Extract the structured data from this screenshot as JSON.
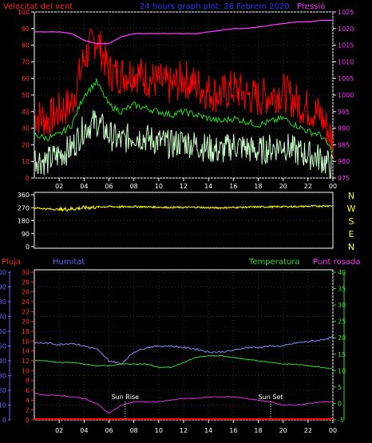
{
  "colors": {
    "background": "#000000",
    "wind_max": "#ff0000",
    "wind_avg": "#22dd22",
    "wind_min": "#ccffcc",
    "pressure": "#ff33ff",
    "direction": "#ffff00",
    "humidity": "#8888ff",
    "temperature": "#33dd33",
    "dewpoint": "#dd33dd",
    "rain": "#ff0000",
    "left_axis_red": "#ff3333",
    "left_axis_blue": "#6666ff",
    "right_axis_magenta": "#ff33ff",
    "right_axis_green": "#33dd33",
    "compass": "#ffff00",
    "panel_border": "#ffffff"
  },
  "header": {
    "wind_title": "Velocitat del vent",
    "graph_title": "24 hours graph plot:  26 Febrero 2020",
    "pressure_title": "Pressió"
  },
  "legend": {
    "rain": "Pluja",
    "humidity": "Humitat",
    "temperature": "Temperatura",
    "dewpoint": "Punt rosada"
  },
  "compass": [
    "N",
    "W",
    "S",
    "E",
    "N"
  ],
  "annotations": {
    "sunrise": "Sun Rise",
    "sunset": "Sun Set"
  },
  "chart_data": [
    {
      "type": "line",
      "title": "Velocitat del vent",
      "xlabel": "",
      "x_ticks": [
        "02",
        "04",
        "06",
        "08",
        "10",
        "12",
        "14",
        "16",
        "18",
        "20",
        "22",
        "00"
      ],
      "ylim_left": [
        0,
        100
      ],
      "y_ticks_left": [
        0,
        10,
        20,
        30,
        40,
        50,
        60,
        70,
        80,
        90,
        100
      ],
      "ylim_right": [
        975,
        1025
      ],
      "y_ticks_right": [
        975,
        980,
        985,
        990,
        995,
        1000,
        1005,
        1010,
        1015,
        1020,
        1025
      ],
      "right_axis_label": "Pressió",
      "x_hours": [
        0,
        1,
        2,
        3,
        4,
        5,
        6,
        7,
        8,
        9,
        10,
        11,
        12,
        13,
        14,
        15,
        16,
        17,
        18,
        19,
        20,
        21,
        22,
        23,
        24
      ],
      "series": [
        {
          "role": "wind_max",
          "axis": "left",
          "values": [
            38,
            35,
            40,
            45,
            72,
            85,
            64,
            62,
            64,
            60,
            58,
            55,
            60,
            56,
            52,
            50,
            54,
            50,
            48,
            50,
            52,
            46,
            42,
            38,
            22
          ]
        },
        {
          "role": "wind_avg",
          "axis": "left",
          "values": [
            26,
            24,
            26,
            32,
            50,
            58,
            44,
            40,
            44,
            42,
            40,
            38,
            40,
            38,
            36,
            34,
            36,
            34,
            32,
            34,
            36,
            32,
            28,
            26,
            16
          ]
        },
        {
          "role": "wind_min",
          "axis": "left",
          "values": [
            12,
            10,
            14,
            18,
            30,
            34,
            26,
            22,
            26,
            24,
            22,
            20,
            22,
            20,
            18,
            16,
            20,
            18,
            16,
            18,
            20,
            16,
            14,
            12,
            6
          ]
        },
        {
          "role": "pressure",
          "axis": "right",
          "values": [
            1019,
            1019,
            1019,
            1018.5,
            1016.5,
            1015.5,
            1015.5,
            1017.5,
            1018.5,
            1018.5,
            1018.5,
            1018.5,
            1018.5,
            1018.5,
            1019,
            1019.5,
            1020,
            1020,
            1020.5,
            1021,
            1021.5,
            1022,
            1022,
            1022.5,
            1022.5
          ]
        }
      ]
    },
    {
      "type": "line",
      "title": "",
      "x_ticks": [
        "02",
        "04",
        "06",
        "08",
        "10",
        "12",
        "14",
        "16",
        "18",
        "20",
        "22",
        "00"
      ],
      "ylim": [
        0,
        360
      ],
      "y_ticks": [
        0,
        90,
        180,
        270,
        360
      ],
      "x_hours": [
        0,
        1,
        2,
        3,
        4,
        5,
        6,
        7,
        8,
        9,
        10,
        11,
        12,
        13,
        14,
        15,
        16,
        17,
        18,
        19,
        20,
        21,
        22,
        23,
        24
      ],
      "series": [
        {
          "role": "wind_direction",
          "values": [
            270,
            262,
            258,
            262,
            270,
            275,
            278,
            276,
            278,
            276,
            274,
            272,
            272,
            274,
            270,
            270,
            272,
            274,
            276,
            276,
            278,
            278,
            280,
            282,
            284
          ]
        }
      ]
    },
    {
      "type": "line",
      "title": "",
      "x_ticks": [
        "02",
        "04",
        "06",
        "08",
        "10",
        "12",
        "14",
        "16",
        "18",
        "20",
        "22",
        "00"
      ],
      "ylim_humidity": [
        0,
        100
      ],
      "y_ticks_humidity": [
        0,
        10,
        20,
        30,
        40,
        50,
        60,
        70,
        80,
        90,
        100
      ],
      "ylim_rain": [
        0,
        30
      ],
      "y_ticks_rain": [
        0,
        2,
        4,
        6,
        8,
        10,
        12,
        14,
        16,
        18,
        20,
        22,
        24,
        26,
        28,
        30
      ],
      "ylim_right": [
        -5,
        40
      ],
      "y_ticks_right": [
        -5,
        0,
        5,
        10,
        15,
        20,
        25,
        30,
        35,
        40
      ],
      "x_hours": [
        0,
        1,
        2,
        3,
        4,
        5,
        6,
        7,
        8,
        9,
        10,
        11,
        12,
        13,
        14,
        15,
        16,
        17,
        18,
        19,
        20,
        21,
        22,
        23,
        24
      ],
      "series": [
        {
          "role": "humidity",
          "axis": "humidity",
          "values": [
            52,
            52,
            51,
            52,
            50,
            48,
            40,
            38,
            46,
            49,
            50,
            50,
            49,
            48,
            46,
            46,
            47,
            49,
            49,
            50,
            50,
            52,
            53,
            54,
            56
          ]
        },
        {
          "role": "temperature",
          "axis": "right",
          "values": [
            13,
            13,
            12.5,
            12.5,
            12,
            11.5,
            11.5,
            12,
            12,
            12,
            11,
            11,
            12.5,
            14,
            14.5,
            14.5,
            14,
            13.5,
            13,
            12.5,
            12,
            12,
            11.5,
            11,
            10.5
          ]
        },
        {
          "role": "dewpoint",
          "axis": "right",
          "values": [
            3,
            2.5,
            2.5,
            2,
            1.5,
            0,
            -3,
            -0.5,
            0.5,
            0.5,
            0.5,
            1,
            1.5,
            1.5,
            2,
            2,
            2,
            1.5,
            1,
            0.5,
            -0.5,
            -0.5,
            0,
            0.5,
            0.5
          ]
        },
        {
          "role": "rain",
          "axis": "rain",
          "values": [
            0,
            0,
            0,
            0,
            0,
            0,
            0,
            0,
            0,
            0,
            0,
            0,
            0,
            0,
            0,
            0,
            0,
            0,
            0,
            0,
            0,
            0,
            0,
            0,
            0
          ]
        }
      ],
      "sunrise_hour": 7.3,
      "sunset_hour": 19.0
    }
  ]
}
